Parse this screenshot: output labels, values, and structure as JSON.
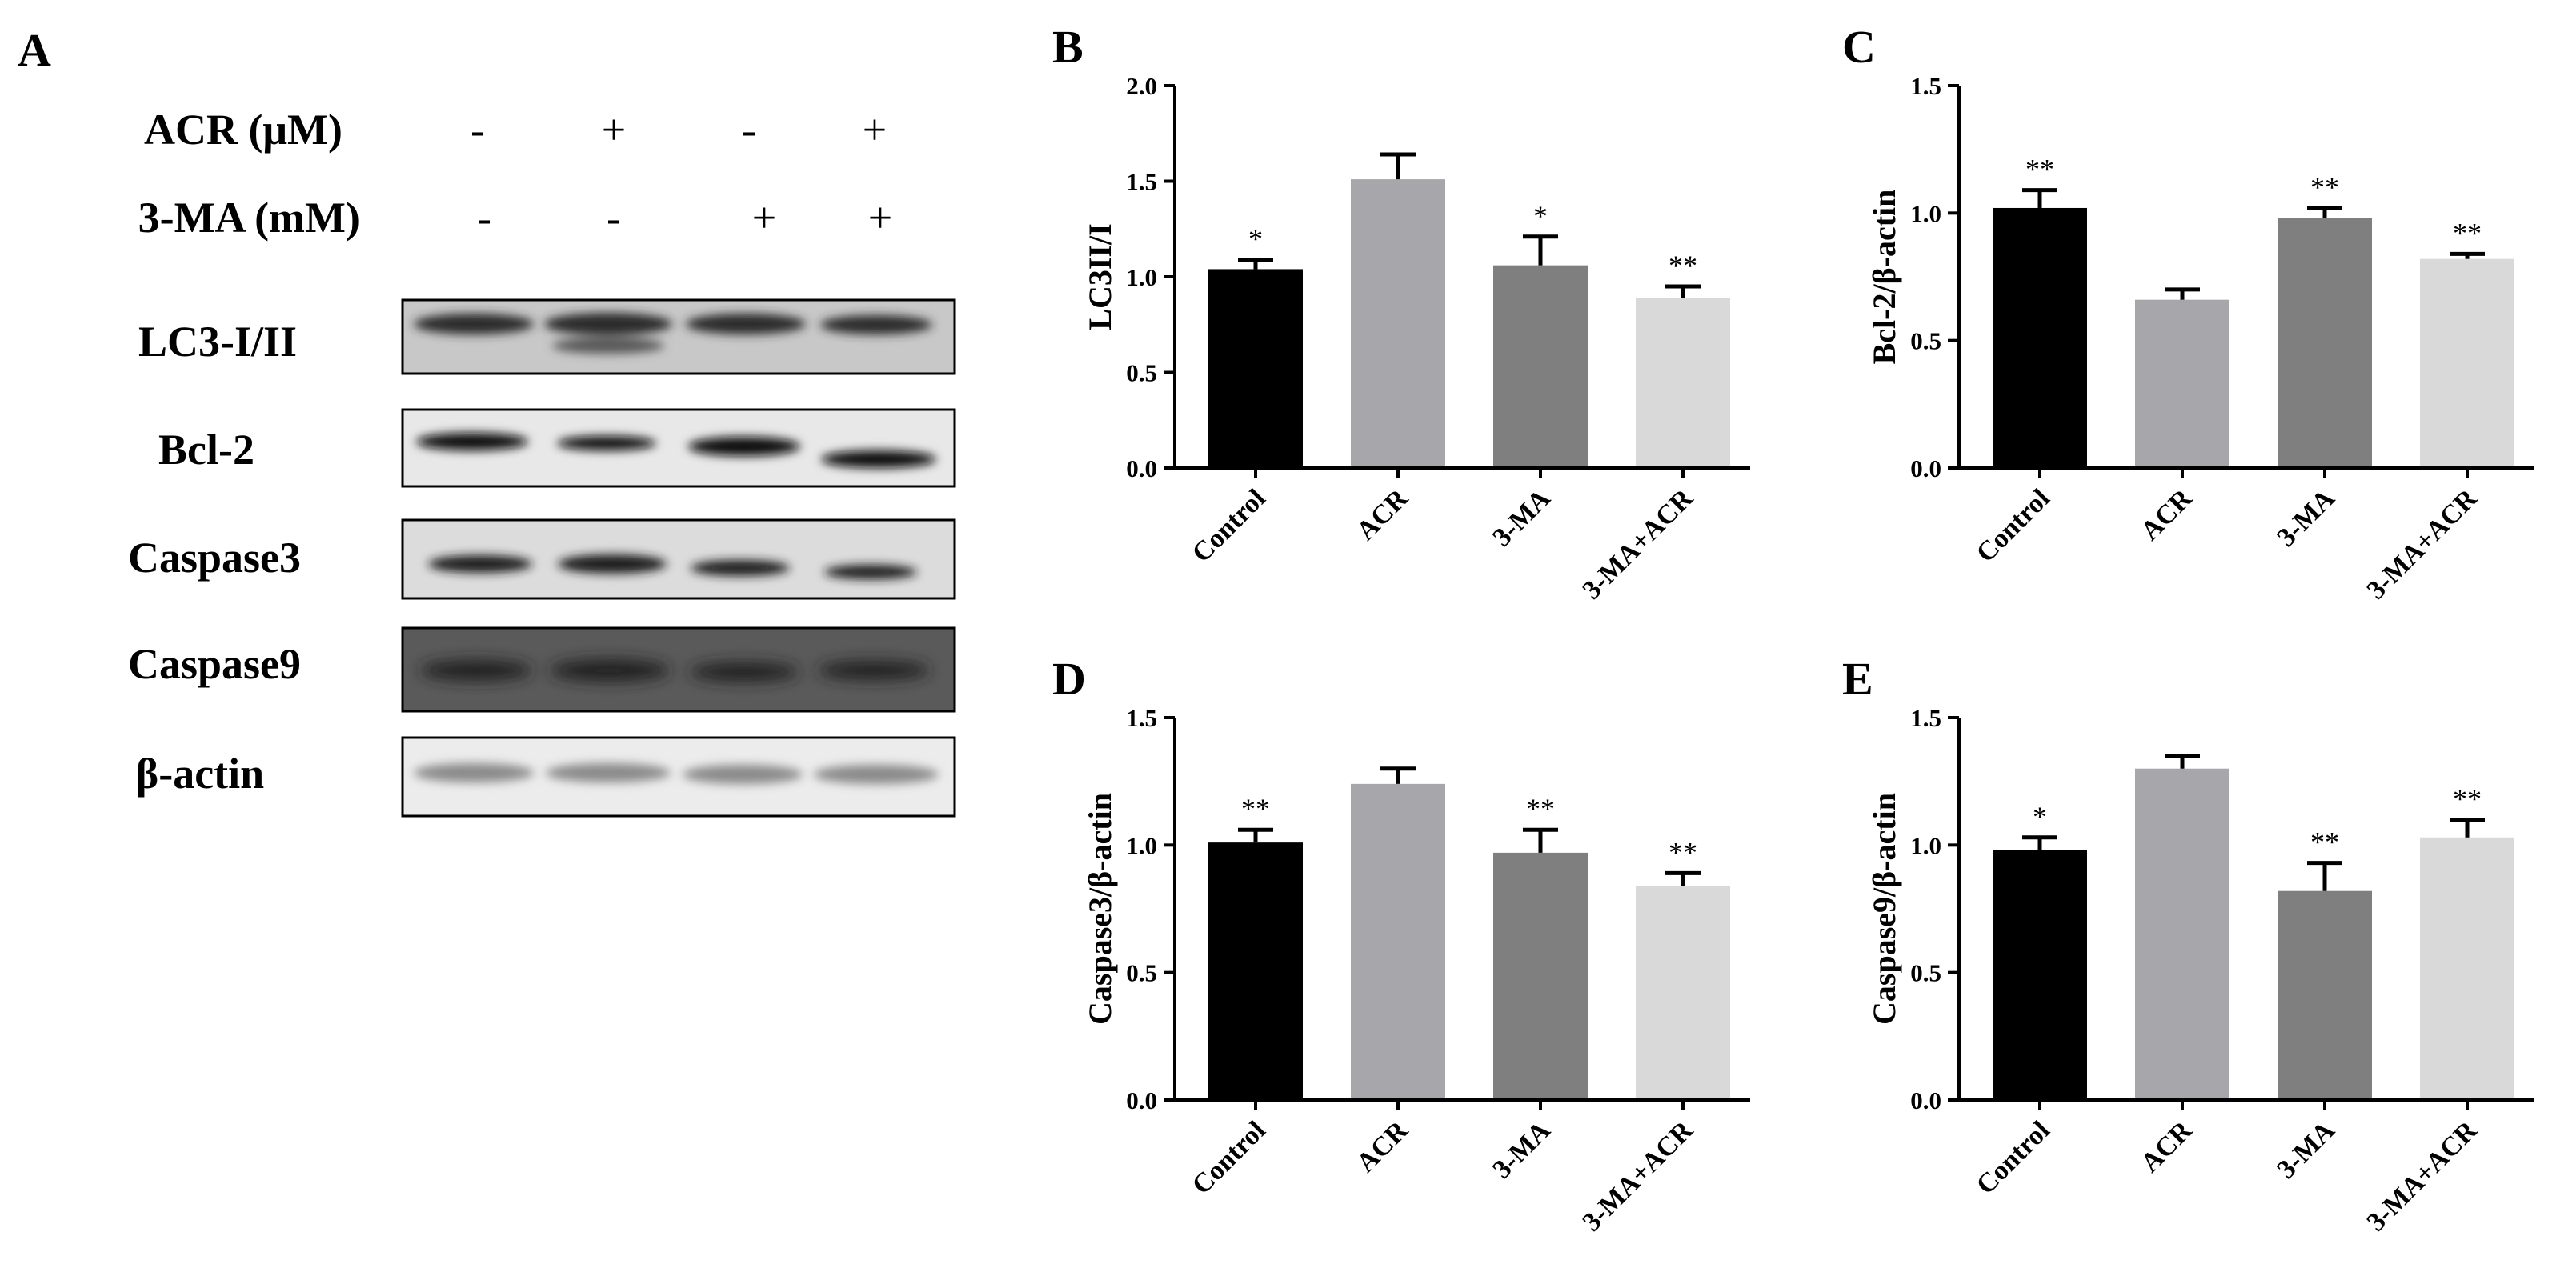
{
  "panel_a": {
    "label": "A",
    "treatments": [
      {
        "name": "ACR (μM)",
        "values": [
          "-",
          "+",
          "-",
          "+"
        ]
      },
      {
        "name": "3-MA (mM)",
        "values": [
          "-",
          "-",
          "+",
          "+"
        ]
      }
    ],
    "blots": [
      "LC3-I/II",
      "Bcl-2",
      "Caspase3",
      "Caspase9",
      "β-actin"
    ]
  },
  "colors": {
    "Control": "#000000",
    "ACR": "#a6a6ab",
    "3-MA": "#7f7f7f",
    "3-MA+ACR": "#d9d9d9"
  },
  "chart_data": [
    {
      "panel": "B",
      "type": "bar",
      "categories": [
        "Control",
        "ACR",
        "3-MA",
        "3-MA+ACR"
      ],
      "values": [
        1.04,
        1.51,
        1.06,
        0.89
      ],
      "errors": [
        0.05,
        0.13,
        0.15,
        0.06
      ],
      "significance": [
        "*",
        "",
        "*",
        "**"
      ],
      "ylabel": "LC3II/I",
      "ylim": [
        0,
        2.0
      ],
      "yticks": [
        "0.0",
        "0.5",
        "1.0",
        "1.5",
        "2.0"
      ]
    },
    {
      "panel": "C",
      "type": "bar",
      "categories": [
        "Control",
        "ACR",
        "3-MA",
        "3-MA+ACR"
      ],
      "values": [
        1.02,
        0.66,
        0.98,
        0.82
      ],
      "errors": [
        0.07,
        0.04,
        0.04,
        0.02
      ],
      "significance": [
        "**",
        "",
        "**",
        "**"
      ],
      "ylabel": "Bcl-2/β-actin",
      "ylim": [
        0,
        1.5
      ],
      "yticks": [
        "0.0",
        "0.5",
        "1.0",
        "1.5"
      ]
    },
    {
      "panel": "D",
      "type": "bar",
      "categories": [
        "Control",
        "ACR",
        "3-MA",
        "3-MA+ACR"
      ],
      "values": [
        1.01,
        1.24,
        0.97,
        0.84
      ],
      "errors": [
        0.05,
        0.06,
        0.09,
        0.05
      ],
      "significance": [
        "**",
        "",
        "**",
        "**"
      ],
      "ylabel": "Caspase3/β-actin",
      "ylim": [
        0,
        1.5
      ],
      "yticks": [
        "0.0",
        "0.5",
        "1.0",
        "1.5"
      ]
    },
    {
      "panel": "E",
      "type": "bar",
      "categories": [
        "Control",
        "ACR",
        "3-MA",
        "3-MA+ACR"
      ],
      "values": [
        0.98,
        1.3,
        0.82,
        1.03
      ],
      "errors": [
        0.05,
        0.05,
        0.11,
        0.07
      ],
      "significance": [
        "*",
        "",
        "**",
        "**"
      ],
      "ylabel": "Caspase9/β-actin",
      "ylim": [
        0,
        1.5
      ],
      "yticks": [
        "0.0",
        "0.5",
        "1.0",
        "1.5"
      ]
    }
  ]
}
